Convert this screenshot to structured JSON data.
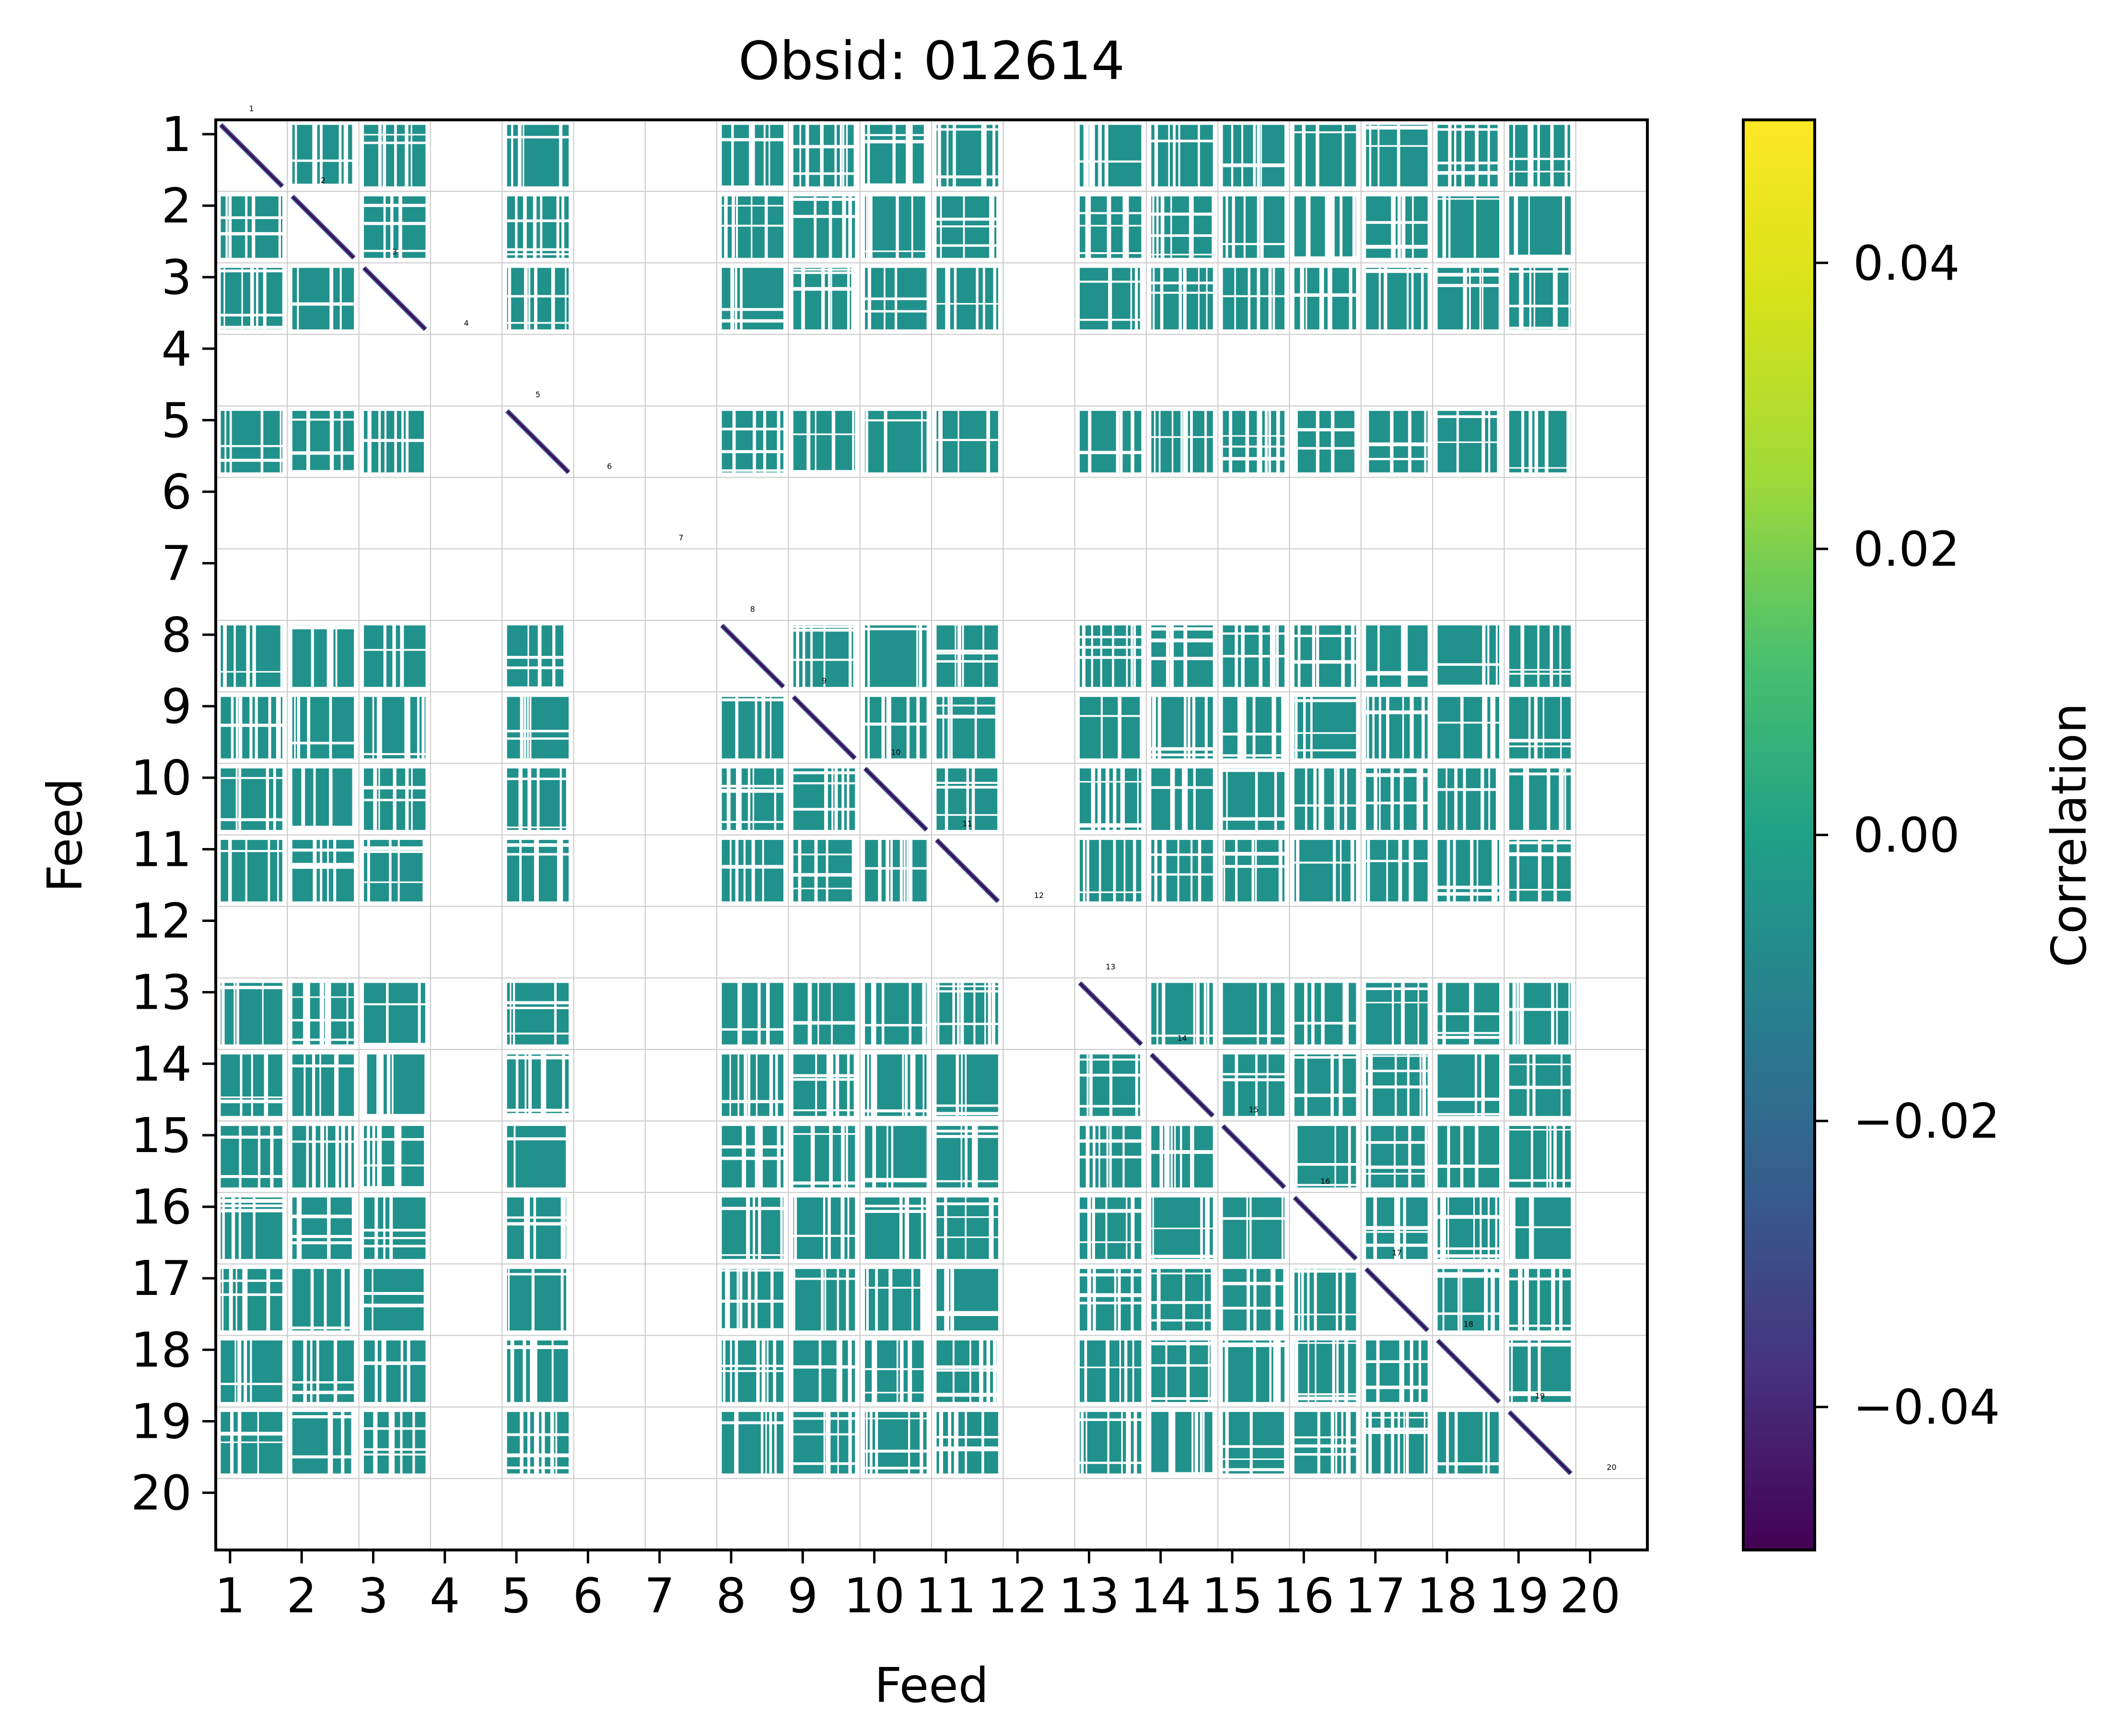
{
  "chart_data": {
    "type": "heatmap",
    "title": "Obsid: 012614",
    "xlabel": "Feed",
    "ylabel": "Feed",
    "feeds": [
      1,
      2,
      3,
      4,
      5,
      6,
      7,
      8,
      9,
      10,
      11,
      12,
      13,
      14,
      15,
      16,
      17,
      18,
      19,
      20
    ],
    "x_tick_labels": [
      "1",
      "2",
      "3",
      "4",
      "5",
      "6",
      "7",
      "8",
      "9",
      "10",
      "11",
      "12",
      "13",
      "14",
      "15",
      "16",
      "17",
      "18",
      "19",
      "20"
    ],
    "y_tick_labels": [
      "1",
      "2",
      "3",
      "4",
      "5",
      "6",
      "7",
      "8",
      "9",
      "10",
      "11",
      "12",
      "13",
      "14",
      "15",
      "16",
      "17",
      "18",
      "19",
      "20"
    ],
    "feed_labels": [
      "1",
      "2",
      "3",
      "4",
      "5",
      "6",
      "7",
      "8",
      "9",
      "10",
      "11",
      "12",
      "13",
      "14",
      "15",
      "16",
      "17",
      "18",
      "19",
      "20"
    ],
    "active_feeds": [
      1,
      2,
      3,
      5,
      8,
      9,
      10,
      11,
      13,
      14,
      15,
      16,
      17,
      18,
      19
    ],
    "inactive_feeds": [
      4,
      6,
      7,
      12,
      20
    ],
    "block_fill_value": 0.0,
    "diagonal_value": -0.05,
    "colorbar": {
      "label": "Correlation",
      "colormap": "viridis",
      "vmin": -0.05,
      "vmax": 0.05,
      "ticks": [
        -0.04,
        -0.02,
        0.0,
        0.02,
        0.04
      ],
      "tick_labels": [
        "−0.04",
        "−0.02",
        "0.00",
        "0.02",
        "0.04"
      ]
    },
    "colors": {
      "block": "#21918c",
      "diagonal_low": "#440154",
      "diagonal_high": "#3b528b",
      "grid": "#c8c8c8",
      "axis": "#000000"
    }
  }
}
